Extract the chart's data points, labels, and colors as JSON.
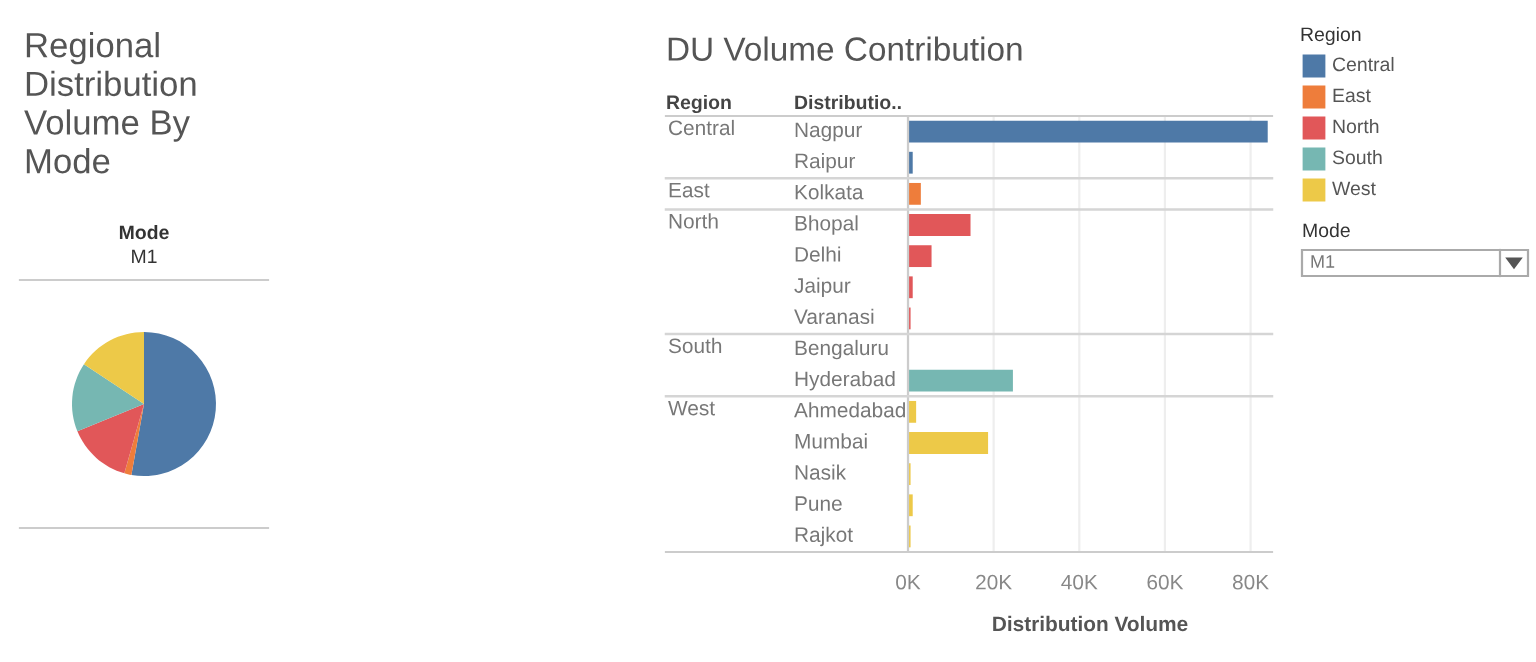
{
  "chart_data": [
    {
      "type": "pie",
      "title": "Regional Distribution Volume By Mode",
      "annotations": [
        "Mode",
        "M1"
      ],
      "categories": [
        "Central",
        "East",
        "North",
        "South",
        "West"
      ],
      "values": [
        52.8,
        1.6,
        14.4,
        15.5,
        15.7
      ],
      "colors": [
        "#4e79a7",
        "#ee7d3b",
        "#e15759",
        "#76b7b2",
        "#edc948"
      ],
      "legend_title": "Region",
      "legend": "right"
    },
    {
      "type": "bar",
      "orientation": "horizontal",
      "title": "DU Volume Contribution",
      "xlabel": "Distribution Volume",
      "categories": [
        "Nagpur",
        "Raipur",
        "Kolkata",
        "Bhopal",
        "Delhi",
        "Jaipur",
        "Varanasi",
        "Bengaluru",
        "Hyderabad",
        "Ahmedabad",
        "Mumbai",
        "Nasik",
        "Pune",
        "Rajkot"
      ],
      "values": [
        84000,
        1100,
        3000,
        14600,
        5500,
        1100,
        600,
        null,
        24500,
        1900,
        18700,
        600,
        1100,
        600
      ],
      "colors": [
        "#4e79a7",
        "#4e79a7",
        "#ee7d3b",
        "#e15759",
        "#e15759",
        "#e15759",
        "#e15759",
        "#76b7b2",
        "#76b7b2",
        "#edc948",
        "#edc948",
        "#edc948",
        "#edc948",
        "#edc948"
      ],
      "annotations": [
        "Region",
        "Distributio..",
        "Central",
        "East",
        "North",
        "South",
        "West"
      ],
      "xlim": [
        0,
        85000
      ],
      "xticks": [
        {
          "value": 0,
          "label": "0K"
        },
        {
          "value": 20000,
          "label": "20K"
        },
        {
          "value": 40000,
          "label": "40K"
        },
        {
          "value": 60000,
          "label": "60K"
        },
        {
          "value": 80000,
          "label": "80K"
        }
      ],
      "grid": "x"
    },
    {
      "type": "other",
      "title": "Mode",
      "annotations": [
        "M1"
      ]
    }
  ]
}
